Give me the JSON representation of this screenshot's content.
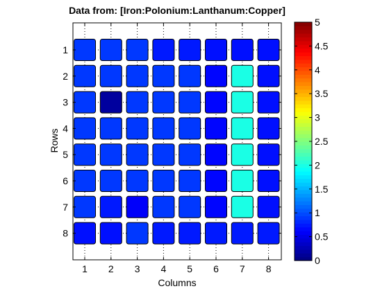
{
  "chart_data": {
    "type": "heatmap",
    "title": "Data from: [Iron:Polonium:Lanthanum:Copper]",
    "xlabel": "Columns",
    "ylabel": "Rows",
    "x_categories": [
      "1",
      "2",
      "3",
      "4",
      "5",
      "6",
      "7",
      "8"
    ],
    "y_categories": [
      "1",
      "2",
      "3",
      "4",
      "5",
      "6",
      "7",
      "8"
    ],
    "values": [
      [
        0.9,
        0.9,
        0.9,
        0.75,
        0.75,
        0.7,
        0.7,
        0.7
      ],
      [
        0.9,
        0.9,
        0.9,
        0.9,
        0.9,
        0.65,
        2.0,
        0.7
      ],
      [
        0.9,
        0.15,
        0.9,
        0.9,
        0.9,
        0.65,
        2.0,
        0.7
      ],
      [
        0.9,
        0.9,
        0.9,
        0.9,
        0.9,
        0.65,
        2.0,
        0.7
      ],
      [
        0.9,
        0.9,
        0.9,
        0.9,
        0.9,
        0.65,
        2.0,
        0.7
      ],
      [
        0.9,
        0.9,
        0.9,
        0.9,
        0.9,
        0.65,
        2.0,
        0.7
      ],
      [
        0.9,
        0.75,
        0.6,
        0.9,
        0.9,
        0.65,
        2.0,
        0.7
      ],
      [
        0.7,
        0.7,
        0.9,
        0.75,
        0.75,
        0.75,
        0.75,
        0.75
      ]
    ],
    "colorbar": {
      "range": [
        0,
        5
      ],
      "ticks": [
        "0",
        "0.5",
        "1",
        "1.5",
        "2",
        "2.5",
        "3",
        "3.5",
        "4",
        "4.5",
        "5"
      ],
      "colormap": "jet"
    },
    "grid": true
  }
}
